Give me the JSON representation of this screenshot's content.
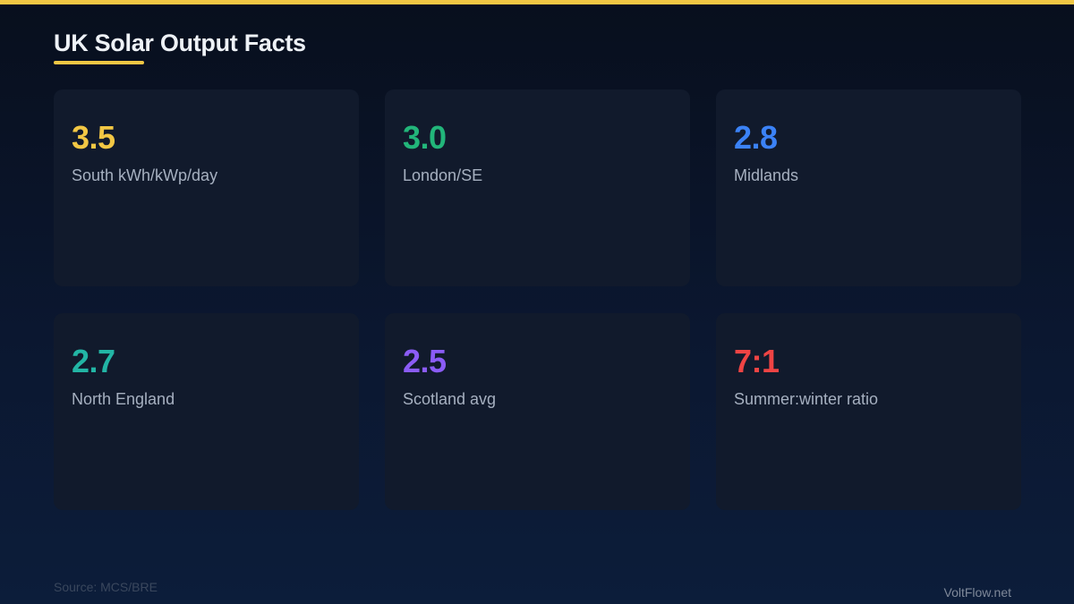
{
  "title": "UK Solar Output Facts",
  "accent_color": "#f2c744",
  "cards": [
    {
      "value": "3.5",
      "label": "South kWh/kWp/day",
      "color": "#f2c744"
    },
    {
      "value": "3.0",
      "label": "London/SE",
      "color": "#22b57a"
    },
    {
      "value": "2.8",
      "label": "Midlands",
      "color": "#3b82f6"
    },
    {
      "value": "2.7",
      "label": "North England",
      "color": "#22b5a5"
    },
    {
      "value": "2.5",
      "label": "Scotland avg",
      "color": "#8b5cf6"
    },
    {
      "value": "7:1",
      "label": "Summer:winter ratio",
      "color": "#ef4444"
    }
  ],
  "footer": {
    "source": "Source: MCS/BRE",
    "brand": "VoltFlow.net"
  }
}
